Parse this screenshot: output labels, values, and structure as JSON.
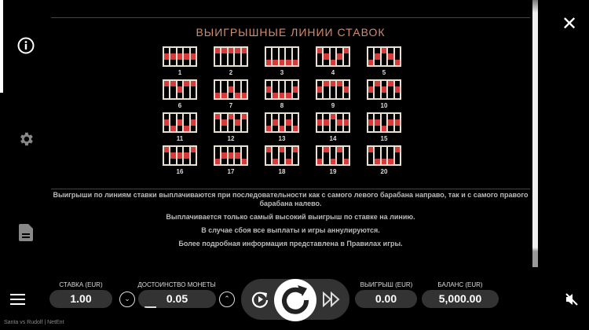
{
  "title": "ВЫИГРЫШНЫЕ ЛИНИИ СТАВОК",
  "paylines": [
    {
      "n": "1",
      "rows": [
        1,
        1,
        1,
        1,
        1
      ]
    },
    {
      "n": "2",
      "rows": [
        0,
        0,
        0,
        0,
        0
      ]
    },
    {
      "n": "3",
      "rows": [
        2,
        2,
        2,
        2,
        2
      ]
    },
    {
      "n": "4",
      "rows": [
        0,
        1,
        2,
        1,
        0
      ]
    },
    {
      "n": "5",
      "rows": [
        2,
        1,
        0,
        1,
        2
      ]
    },
    {
      "n": "6",
      "rows": [
        0,
        0,
        1,
        0,
        0
      ]
    },
    {
      "n": "7",
      "rows": [
        2,
        2,
        1,
        2,
        2
      ]
    },
    {
      "n": "8",
      "rows": [
        1,
        2,
        2,
        2,
        1
      ]
    },
    {
      "n": "9",
      "rows": [
        1,
        0,
        0,
        0,
        1
      ]
    },
    {
      "n": "10",
      "rows": [
        1,
        0,
        1,
        0,
        1
      ]
    },
    {
      "n": "11",
      "rows": [
        1,
        2,
        1,
        2,
        1
      ]
    },
    {
      "n": "12",
      "rows": [
        0,
        1,
        0,
        1,
        0
      ]
    },
    {
      "n": "13",
      "rows": [
        2,
        1,
        2,
        1,
        2
      ]
    },
    {
      "n": "14",
      "rows": [
        1,
        1,
        0,
        1,
        1
      ]
    },
    {
      "n": "15",
      "rows": [
        1,
        1,
        2,
        1,
        1
      ]
    },
    {
      "n": "16",
      "rows": [
        0,
        1,
        1,
        1,
        0
      ]
    },
    {
      "n": "17",
      "rows": [
        2,
        1,
        1,
        1,
        2
      ]
    },
    {
      "n": "18",
      "rows": [
        0,
        2,
        0,
        2,
        0
      ]
    },
    {
      "n": "19",
      "rows": [
        2,
        0,
        2,
        0,
        2
      ]
    },
    {
      "n": "20",
      "rows": [
        0,
        2,
        2,
        2,
        0
      ]
    }
  ],
  "info": [
    "Выигрыши по линиям ставки выплачиваются при последовательности как с самого левого барабана направо, так и с самого правого барабана налево.",
    "Выплачивается только самый высокий выигрыш по ставке на линию.",
    "В случае сбоя все выплаты и игры аннулируются.",
    "Более подробная информация представлена в Правилах игры."
  ],
  "bar": {
    "bet_label": "СТАВКА (EUR)",
    "bet": "1.00",
    "coin_label": "ДОСТОИНСТВО МОНЕТЫ",
    "coin": "0.05",
    "coin_level": 0.05,
    "win_label": "ВЫИГРЫШ (EUR)",
    "win": "0.00",
    "balance_label": "БАЛАНС (EUR)",
    "balance": "5,000.00"
  },
  "footer": "Santa vs Rudolf  |  NetEnt",
  "colors": {
    "accent": "#d58b6c",
    "payline": "#d63a3a"
  }
}
